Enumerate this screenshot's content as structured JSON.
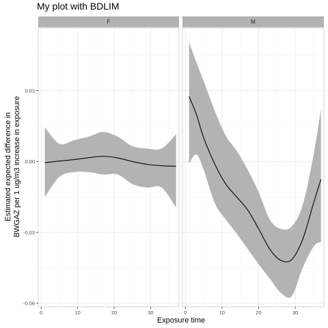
{
  "chart_data": {
    "type": "line",
    "title": "My plot with BDLIM",
    "xlabel": "Exposure time",
    "ylabel_line1": "Estimated expected difference in",
    "ylabel_line2": "BWGAZ per 1 ug/m3 increase in exposure",
    "xlim": [
      -0.8,
      37.8
    ],
    "ylim": [
      -0.0615,
      0.0565
    ],
    "x_ticks": [
      0,
      10,
      20,
      30
    ],
    "x_tick_labels": [
      "0",
      "10",
      "20",
      "30"
    ],
    "y_ticks": [
      -0.06,
      -0.03,
      0.0,
      0.03
    ],
    "y_tick_labels": [
      "-0.06",
      "-0.03",
      "0.00",
      "0.03"
    ],
    "grid": true,
    "panels": [
      {
        "strip": "F",
        "x": [
          1,
          5,
          9,
          13,
          17,
          21,
          25,
          29,
          33,
          37
        ],
        "y": [
          -0.0005,
          0.0002,
          0.0008,
          0.0016,
          0.0022,
          0.0015,
          0.0,
          -0.0012,
          -0.0018,
          -0.002
        ],
        "upper": [
          0.0145,
          0.0075,
          0.009,
          0.0105,
          0.0125,
          0.0105,
          0.0065,
          0.0055,
          0.0055,
          0.0115
        ],
        "lower": [
          -0.015,
          -0.0065,
          -0.0045,
          -0.0045,
          -0.0055,
          -0.0055,
          -0.0095,
          -0.011,
          -0.011,
          -0.0195
        ]
      },
      {
        "strip": "M",
        "x": [
          1,
          3,
          5,
          8,
          11,
          14,
          17,
          20,
          23,
          26,
          29,
          32,
          35,
          37
        ],
        "y": [
          0.0275,
          0.02,
          0.01,
          -0.001,
          -0.0095,
          -0.015,
          -0.0205,
          -0.0285,
          -0.037,
          -0.0418,
          -0.0415,
          -0.033,
          -0.0175,
          -0.0075
        ],
        "upper": [
          0.0505,
          0.042,
          0.034,
          0.0215,
          0.011,
          0.0045,
          -0.0035,
          -0.013,
          -0.0245,
          -0.0285,
          -0.0275,
          -0.0185,
          0.003,
          0.022
        ],
        "lower": [
          -0.001,
          0.003,
          -0.0035,
          -0.0175,
          -0.0245,
          -0.0305,
          -0.037,
          -0.0435,
          -0.0495,
          -0.0555,
          -0.057,
          -0.045,
          -0.036,
          -0.034
        ]
      }
    ],
    "colors": {
      "ribbon": "#b3b3b3",
      "line": "#000000",
      "strip_bg": "#b3b3b3",
      "grid_major": "#ebebeb",
      "grid_minor": "#f5f5f5",
      "panel_border": "#cccccc"
    }
  }
}
